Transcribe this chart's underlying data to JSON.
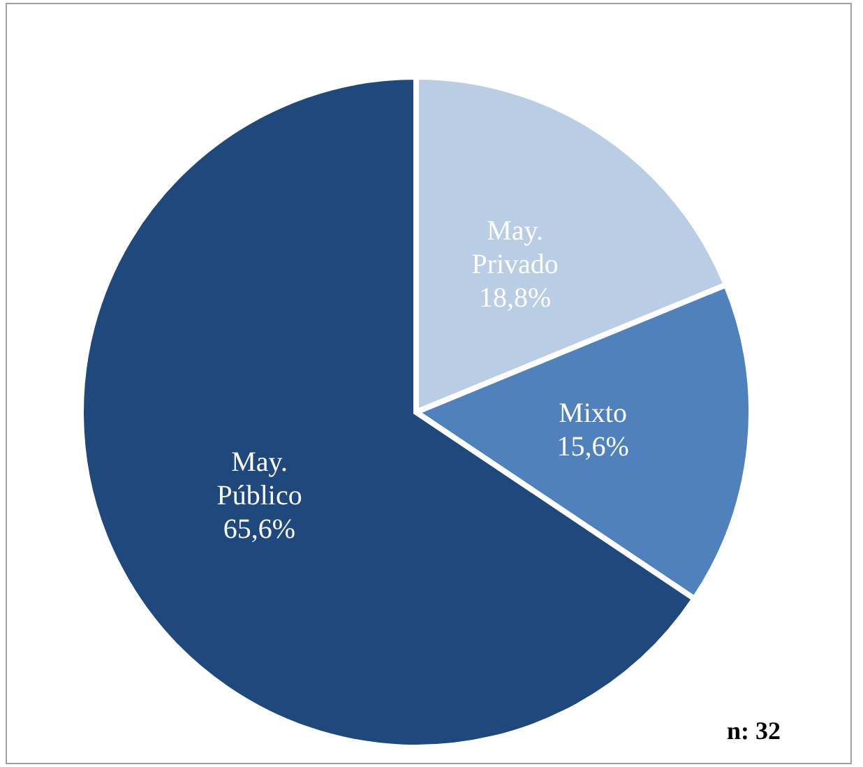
{
  "chart_data": {
    "type": "pie",
    "categories": [
      "May. Privado",
      "Mixto",
      "May. Público"
    ],
    "values": [
      18.8,
      15.6,
      65.6
    ],
    "colors": [
      "#b9cde5",
      "#4f81bd",
      "#1f497d"
    ],
    "value_labels": [
      "18,8%",
      "15,6%",
      "65,6%"
    ],
    "annotations": [
      "n: 32"
    ],
    "legend": false
  }
}
